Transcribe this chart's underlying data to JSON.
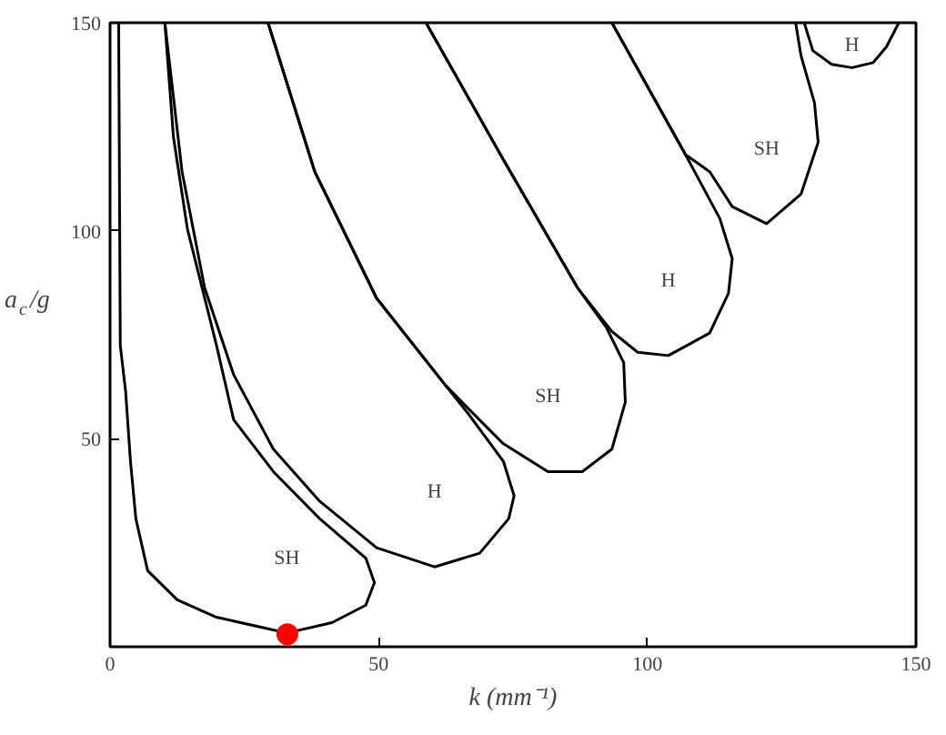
{
  "chart_data": {
    "type": "line",
    "xlabel": "k (mm⁻¹)",
    "ylabel": "a$_{c}$/g",
    "xlim": [
      0,
      150
    ],
    "ylim": [
      0,
      150
    ],
    "xticks": [
      0,
      50,
      100,
      150
    ],
    "yticks": [
      50,
      100,
      150
    ],
    "grid": false,
    "marker": "none",
    "line_style": "solid",
    "series": [
      {
        "color": "#000000",
        "x": [
          1.6,
          1.9,
          2.9,
          3.8,
          4.8,
          7.0,
          12.5,
          19.8,
          28.5,
          32.9,
          41.3,
          47.6,
          49.2,
          47.6,
          39.0,
          30.4,
          23.0,
          19.8,
          14.4,
          11.8,
          10.2
        ],
        "values": [
          150,
          72.5,
          61.3,
          44.6,
          30.8,
          18.3,
          11.3,
          7.1,
          4.6,
          3.3,
          5.8,
          10,
          15.4,
          21.3,
          30.8,
          42.1,
          54.6,
          72.5,
          100.4,
          122.5,
          150
        ]
      },
      {
        "color": "#000000",
        "x": [
          10.2,
          13.4,
          17.6,
          23.0,
          30.4,
          39.0,
          49.6,
          60.4,
          68.8,
          74.2,
          75.2,
          73.2,
          66.8,
          62.4,
          49.6,
          38.1,
          29.4
        ],
        "values": [
          150,
          114.2,
          86.3,
          65.4,
          47.5,
          35,
          23.8,
          19.2,
          22.5,
          30.8,
          36.3,
          44.6,
          55.8,
          62.9,
          83.8,
          114.2,
          150
        ]
      },
      {
        "color": "#000000",
        "x": [
          29.4,
          38.1,
          49.6,
          62.4,
          66.8,
          73.2,
          81.5,
          87.9,
          93.4,
          95.9,
          95.6,
          92.4,
          87.0,
          73.2,
          58.8
        ],
        "values": [
          150,
          114.2,
          83.8,
          62.9,
          57.1,
          48.8,
          42.1,
          42.1,
          47.5,
          58.8,
          68.3,
          76.7,
          86.3,
          117.1,
          150
        ]
      },
      {
        "color": "#000000",
        "x": [
          58.8,
          73.2,
          87.0,
          93.4,
          98.2,
          103.9,
          111.6,
          115.1,
          115.8,
          113.5,
          107.1,
          93.4
        ],
        "values": [
          150,
          117.1,
          86.3,
          75.8,
          70.8,
          70,
          75.4,
          85,
          93.3,
          102.9,
          118.3,
          150
        ]
      },
      {
        "color": "#000000",
        "x": [
          93.4,
          107.1,
          111.6,
          115.8,
          122.2,
          128.6,
          131.8,
          131.1,
          128.6,
          127.6
        ],
        "values": [
          150,
          118.3,
          114.2,
          105.8,
          101.7,
          108.8,
          121.3,
          130.8,
          142.1,
          150
        ]
      },
      {
        "color": "#000000",
        "x": [
          129.2,
          130.8,
          134.3,
          138.1,
          142.0,
          144.5,
          146.8
        ],
        "values": [
          150,
          143.3,
          140,
          139.2,
          140.4,
          144.2,
          150
        ]
      },
      {
        "type": "scatter",
        "marker": "circle",
        "color": "#ff0000",
        "x": [
          33
        ],
        "values": [
          3
        ]
      }
    ],
    "annotations": [
      "SH",
      "H",
      "SH",
      "H",
      "SH",
      "H"
    ]
  }
}
